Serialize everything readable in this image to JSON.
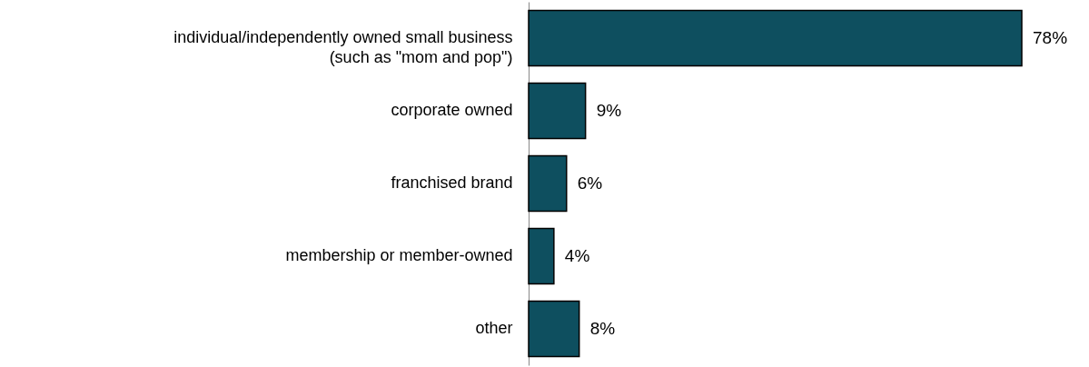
{
  "chart_data": {
    "type": "bar",
    "orientation": "horizontal",
    "categories": [
      "individual/independently owned small business\n(such as \"mom and pop\")",
      "corporate owned",
      "franchised brand",
      "membership or member-owned",
      "other"
    ],
    "values": [
      78,
      9,
      6,
      4,
      8
    ],
    "value_labels": [
      "78%",
      "9%",
      "6%",
      "4%",
      "8%"
    ],
    "color": "#0e4f5f",
    "grid": false
  }
}
